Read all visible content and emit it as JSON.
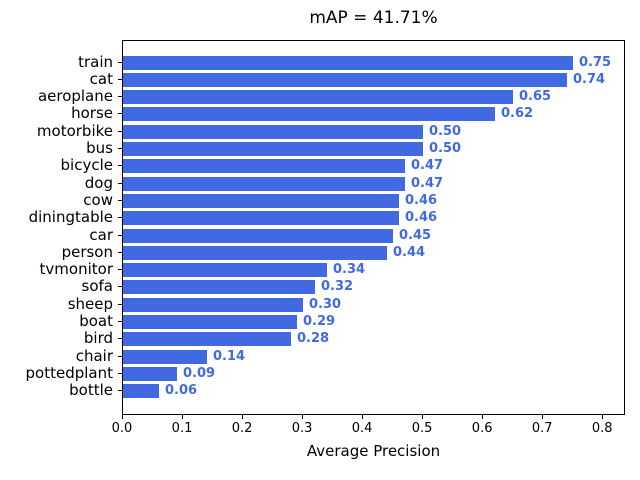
{
  "title": "mAP = 41.71%",
  "chart_data": {
    "type": "bar",
    "orientation": "horizontal",
    "title": "mAP = 41.71%",
    "categories": [
      "train",
      "cat",
      "aeroplane",
      "horse",
      "motorbike",
      "bus",
      "bicycle",
      "dog",
      "cow",
      "diningtable",
      "car",
      "person",
      "tvmonitor",
      "sofa",
      "sheep",
      "boat",
      "bird",
      "chair",
      "pottedplant",
      "bottle"
    ],
    "values": [
      0.75,
      0.74,
      0.65,
      0.62,
      0.5,
      0.5,
      0.47,
      0.47,
      0.46,
      0.46,
      0.45,
      0.44,
      0.34,
      0.32,
      0.3,
      0.29,
      0.28,
      0.14,
      0.09,
      0.06
    ],
    "value_labels": [
      "0.75",
      "0.74",
      "0.65",
      "0.62",
      "0.50",
      "0.50",
      "0.47",
      "0.47",
      "0.46",
      "0.46",
      "0.45",
      "0.44",
      "0.34",
      "0.32",
      "0.30",
      "0.29",
      "0.28",
      "0.14",
      "0.09",
      "0.06"
    ],
    "xlabel": "Average Precision",
    "ylabel": "",
    "xlim": [
      0.0,
      0.838
    ],
    "x_tick_labels": [
      "0.0",
      "0.1",
      "0.2",
      "0.3",
      "0.4",
      "0.5",
      "0.6",
      "0.7",
      "0.8"
    ],
    "x_tick_values": [
      0.0,
      0.1,
      0.2,
      0.3,
      0.4,
      0.5,
      0.6,
      0.7,
      0.8
    ],
    "grid": false,
    "legend_position": "none",
    "bar_color": "#4169e1",
    "value_label_color": "#4169e1",
    "axis_color": "#000000"
  }
}
